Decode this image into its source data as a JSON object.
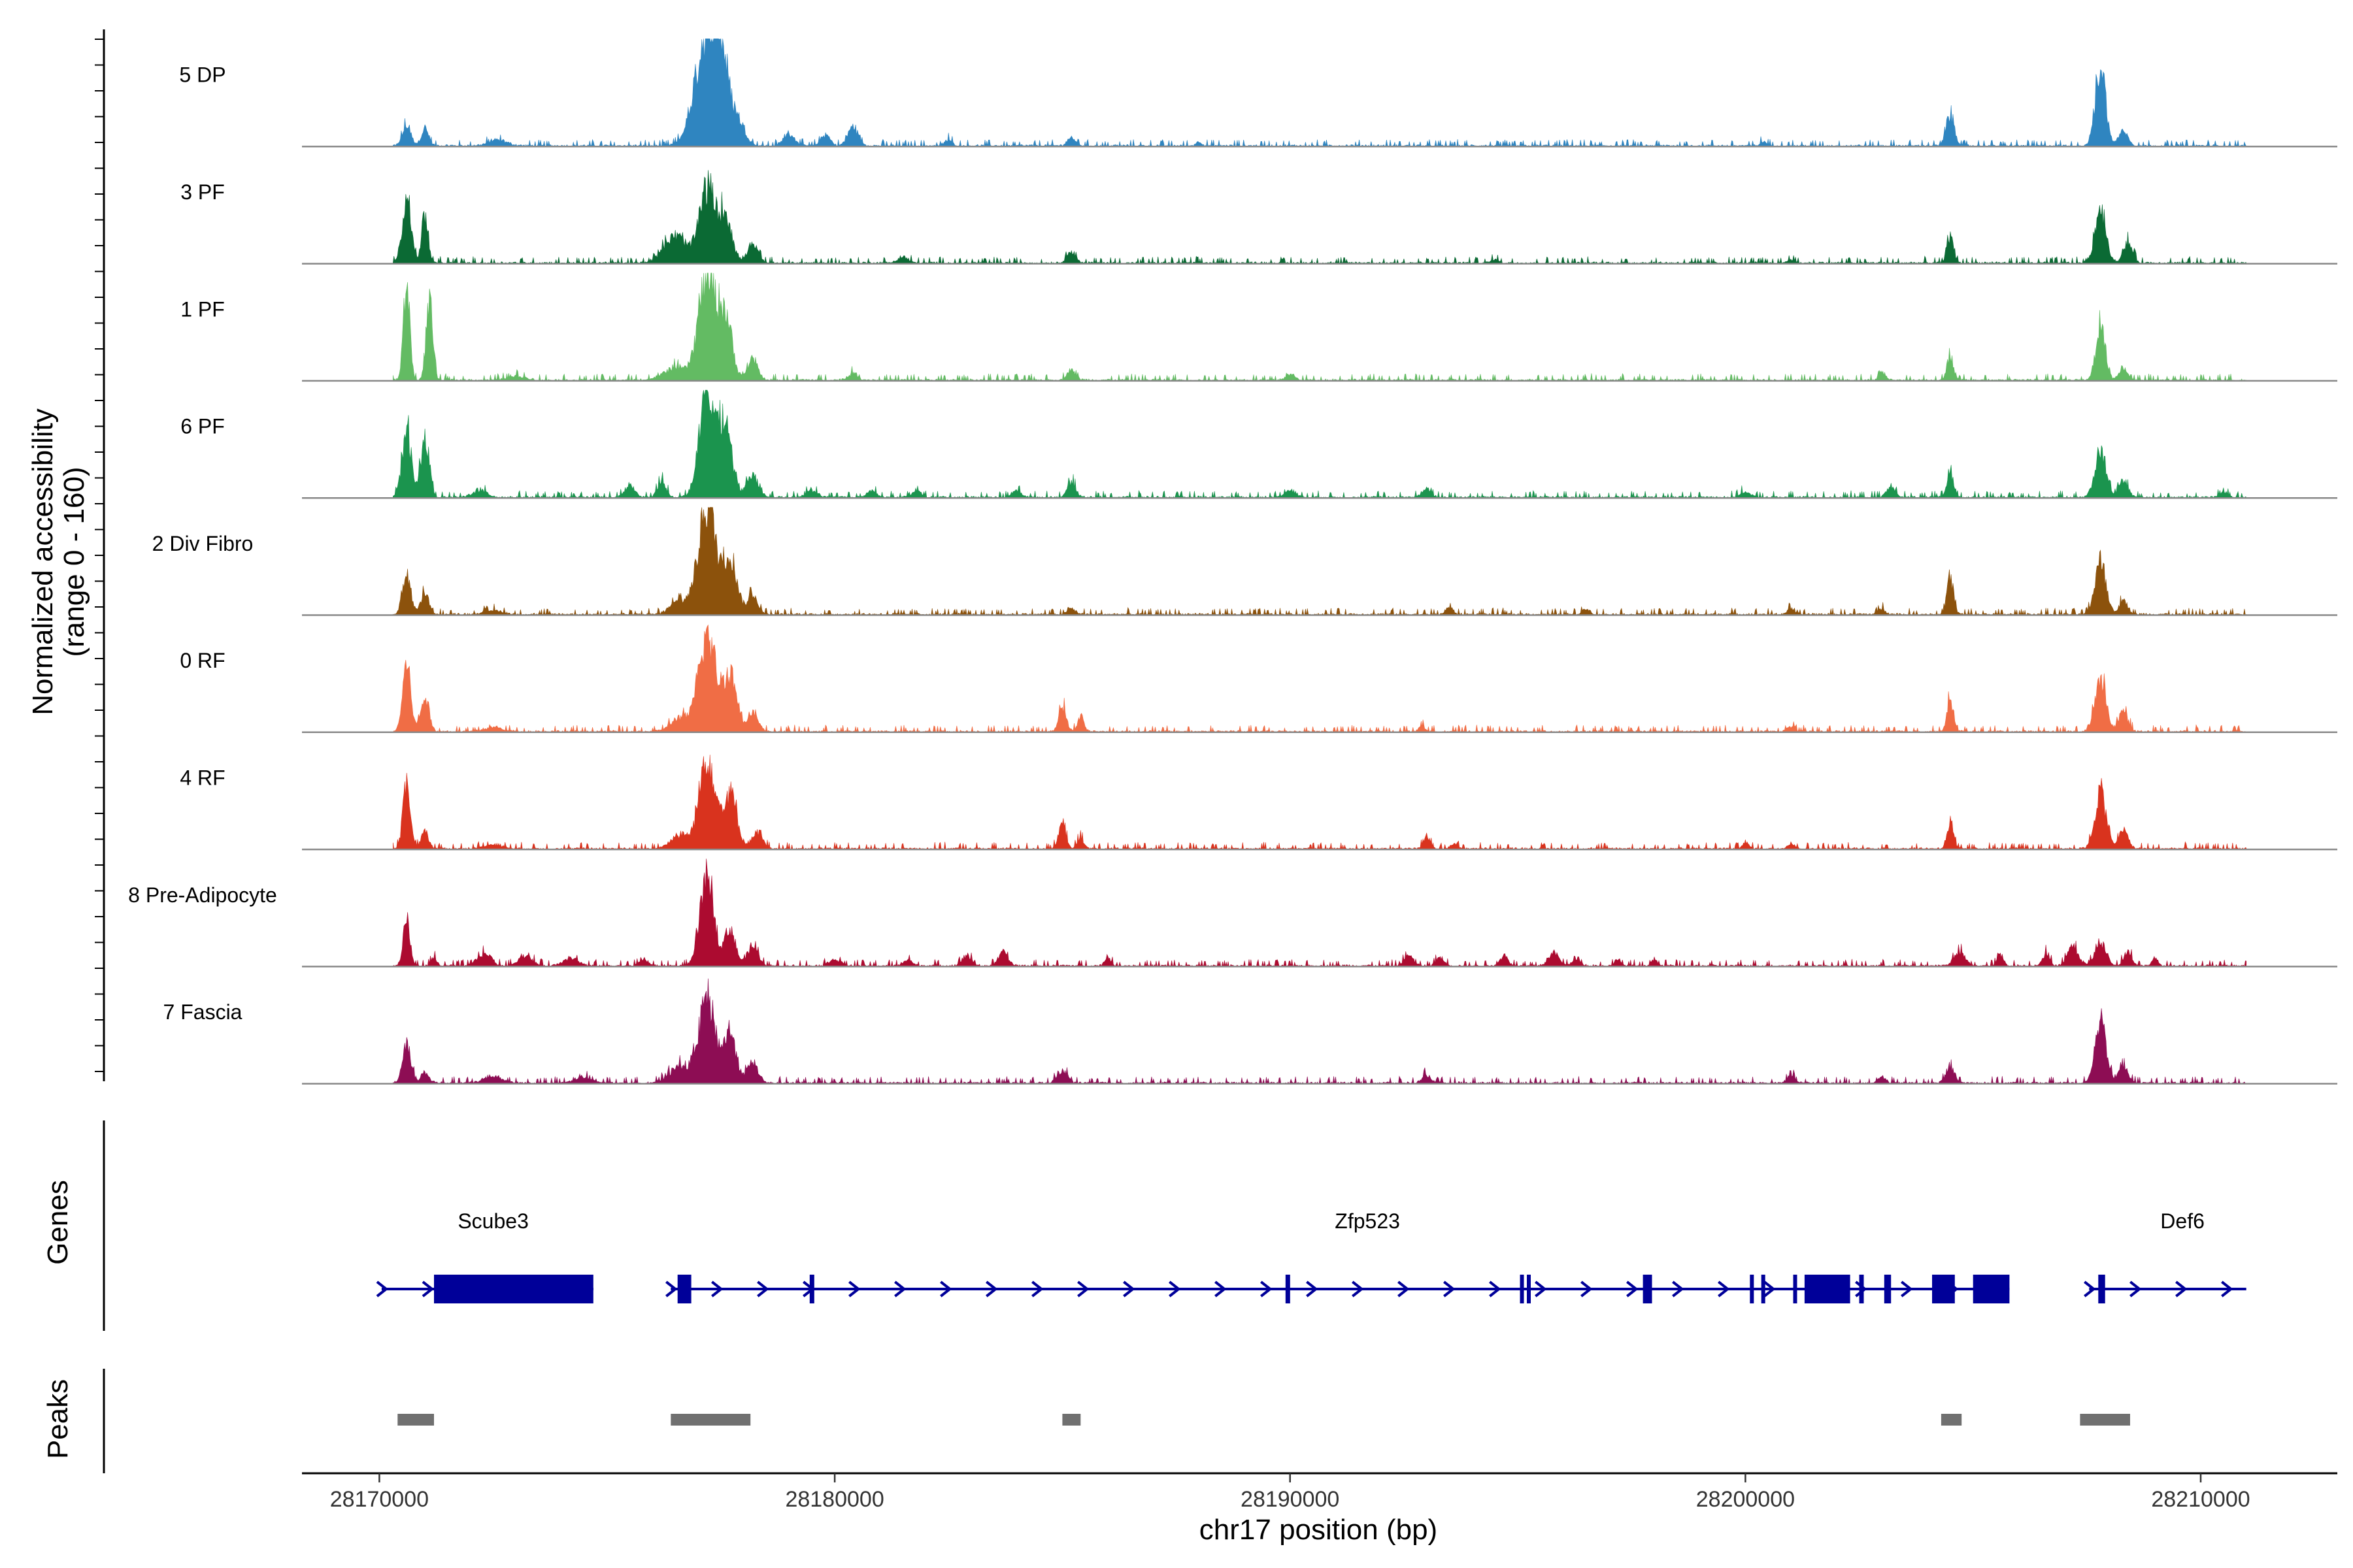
{
  "chart_data": {
    "type": "area",
    "title": "",
    "xlabel": "chr17 position (bp)",
    "ylabel": [
      "Normalized accessibility",
      "(range 0 - 160)"
    ],
    "ylim": [
      0,
      160
    ],
    "xlim": [
      28168300,
      28213000
    ],
    "x_ticks": [
      {
        "value": 28170000,
        "label": "28170000"
      },
      {
        "value": 28180000,
        "label": "28180000"
      },
      {
        "value": 28190000,
        "label": "28190000"
      },
      {
        "value": 28200000,
        "label": "28200000"
      },
      {
        "value": 28210000,
        "label": "28210000"
      }
    ],
    "data_range": [
      28170300,
      28211000
    ],
    "series": [
      {
        "name": "5 DP",
        "color": "#2f85c0",
        "peaks": [
          [
            28170600,
            30,
            90
          ],
          [
            28171000,
            26,
            80
          ],
          [
            28172600,
            8,
            200
          ],
          [
            28177200,
            160,
            260
          ],
          [
            28177500,
            90,
            180
          ],
          [
            28177900,
            30,
            150
          ],
          [
            28179000,
            18,
            120
          ],
          [
            28179800,
            16,
            100
          ],
          [
            28180400,
            28,
            110
          ],
          [
            28182500,
            9,
            80
          ],
          [
            28185200,
            12,
            90
          ],
          [
            28188000,
            6,
            60
          ],
          [
            28200400,
            6,
            70
          ],
          [
            28204500,
            45,
            90
          ],
          [
            28207800,
            120,
            110
          ],
          [
            28208300,
            22,
            100
          ]
        ]
      },
      {
        "name": "3 PF",
        "color": "#0b6a34",
        "peaks": [
          [
            28170600,
            95,
            100
          ],
          [
            28171000,
            70,
            70
          ],
          [
            28176500,
            40,
            250
          ],
          [
            28177200,
            110,
            170
          ],
          [
            28177600,
            70,
            140
          ],
          [
            28178200,
            25,
            120
          ],
          [
            28181500,
            8,
            120
          ],
          [
            28185200,
            18,
            90
          ],
          [
            28194500,
            6,
            70
          ],
          [
            28201000,
            6,
            70
          ],
          [
            28204500,
            40,
            70
          ],
          [
            28207800,
            80,
            120
          ],
          [
            28208400,
            30,
            100
          ]
        ]
      },
      {
        "name": "1 PF",
        "color": "#63bb63",
        "peaks": [
          [
            28170600,
            140,
            70
          ],
          [
            28171100,
            115,
            70
          ],
          [
            28173000,
            6,
            200
          ],
          [
            28176500,
            18,
            250
          ],
          [
            28177200,
            155,
            190
          ],
          [
            28177600,
            90,
            140
          ],
          [
            28178200,
            30,
            110
          ],
          [
            28180400,
            10,
            100
          ],
          [
            28185200,
            15,
            90
          ],
          [
            28190000,
            8,
            100
          ],
          [
            28203000,
            12,
            70
          ],
          [
            28204500,
            35,
            70
          ],
          [
            28207800,
            85,
            100
          ],
          [
            28208300,
            18,
            90
          ]
        ]
      },
      {
        "name": "6 PF",
        "color": "#1b944e",
        "peaks": [
          [
            28170600,
            100,
            100
          ],
          [
            28171000,
            90,
            90
          ],
          [
            28172200,
            10,
            150
          ],
          [
            28175500,
            18,
            100
          ],
          [
            28176200,
            25,
            90
          ],
          [
            28177200,
            155,
            170
          ],
          [
            28177600,
            110,
            140
          ],
          [
            28178200,
            30,
            130
          ],
          [
            28179500,
            10,
            120
          ],
          [
            28180800,
            10,
            100
          ],
          [
            28181800,
            10,
            100
          ],
          [
            28184000,
            10,
            100
          ],
          [
            28185200,
            22,
            90
          ],
          [
            28190000,
            10,
            120
          ],
          [
            28193000,
            12,
            100
          ],
          [
            28200000,
            8,
            100
          ],
          [
            28203200,
            14,
            100
          ],
          [
            28204500,
            40,
            70
          ],
          [
            28207800,
            70,
            120
          ],
          [
            28208300,
            25,
            100
          ],
          [
            28210500,
            8,
            80
          ]
        ]
      },
      {
        "name": "2 Div Fibro",
        "color": "#8c520c",
        "peaks": [
          [
            28170600,
            60,
            90
          ],
          [
            28171000,
            30,
            90
          ],
          [
            28172500,
            6,
            200
          ],
          [
            28176600,
            20,
            200
          ],
          [
            28177200,
            165,
            190
          ],
          [
            28177700,
            85,
            150
          ],
          [
            28178200,
            30,
            110
          ],
          [
            28185200,
            8,
            90
          ],
          [
            28193500,
            10,
            80
          ],
          [
            28196500,
            8,
            80
          ],
          [
            28201000,
            8,
            80
          ],
          [
            28203000,
            8,
            80
          ],
          [
            28204500,
            55,
            70
          ],
          [
            28207800,
            80,
            120
          ],
          [
            28208300,
            20,
            90
          ]
        ]
      },
      {
        "name": "0 RF",
        "color": "#f06d45",
        "peaks": [
          [
            28170600,
            98,
            90
          ],
          [
            28171000,
            50,
            90
          ],
          [
            28172500,
            6,
            200
          ],
          [
            28176600,
            20,
            200
          ],
          [
            28177200,
            140,
            190
          ],
          [
            28177700,
            85,
            150
          ],
          [
            28178200,
            28,
            110
          ],
          [
            28185000,
            38,
            80
          ],
          [
            28185400,
            22,
            70
          ],
          [
            28192900,
            8,
            70
          ],
          [
            28201000,
            8,
            80
          ],
          [
            28204500,
            48,
            70
          ],
          [
            28207800,
            80,
            120
          ],
          [
            28208300,
            30,
            100
          ]
        ]
      },
      {
        "name": "4 RF",
        "color": "#d9331e",
        "peaks": [
          [
            28170600,
            95,
            80
          ],
          [
            28171000,
            25,
            80
          ],
          [
            28172500,
            6,
            200
          ],
          [
            28176600,
            20,
            200
          ],
          [
            28177200,
            140,
            170
          ],
          [
            28177700,
            80,
            150
          ],
          [
            28178300,
            25,
            110
          ],
          [
            28185000,
            35,
            80
          ],
          [
            28185400,
            15,
            70
          ],
          [
            28193000,
            18,
            70
          ],
          [
            28193600,
            8,
            70
          ],
          [
            28200000,
            8,
            80
          ],
          [
            28201000,
            8,
            80
          ],
          [
            28204500,
            38,
            70
          ],
          [
            28207800,
            85,
            120
          ],
          [
            28208300,
            28,
            100
          ]
        ]
      },
      {
        "name": "8 Pre-Adipocyte",
        "color": "#ac0b30",
        "peaks": [
          [
            28170600,
            70,
            70
          ],
          [
            28171200,
            12,
            60
          ],
          [
            28172300,
            18,
            150
          ],
          [
            28173200,
            15,
            150
          ],
          [
            28174200,
            12,
            150
          ],
          [
            28175800,
            10,
            90
          ],
          [
            28177200,
            135,
            150
          ],
          [
            28177700,
            55,
            120
          ],
          [
            28178200,
            28,
            120
          ],
          [
            28180000,
            10,
            120
          ],
          [
            28181600,
            10,
            90
          ],
          [
            28182900,
            15,
            100
          ],
          [
            28183700,
            20,
            100
          ],
          [
            28186000,
            14,
            60
          ],
          [
            28192600,
            15,
            100
          ],
          [
            28193300,
            12,
            90
          ],
          [
            28194700,
            15,
            90
          ],
          [
            28195800,
            18,
            120
          ],
          [
            28196300,
            12,
            80
          ],
          [
            28197200,
            10,
            60
          ],
          [
            28198000,
            10,
            60
          ],
          [
            28204700,
            20,
            120
          ],
          [
            28205600,
            16,
            70
          ],
          [
            28206600,
            18,
            80
          ],
          [
            28207200,
            28,
            120
          ],
          [
            28207800,
            35,
            120
          ],
          [
            28208400,
            20,
            90
          ],
          [
            28209000,
            12,
            60
          ]
        ]
      },
      {
        "name": "7 Fascia",
        "color": "#8d0d54",
        "peaks": [
          [
            28170600,
            60,
            90
          ],
          [
            28171000,
            15,
            90
          ],
          [
            28172500,
            10,
            200
          ],
          [
            28174500,
            8,
            200
          ],
          [
            28176600,
            25,
            220
          ],
          [
            28177200,
            125,
            180
          ],
          [
            28177700,
            75,
            130
          ],
          [
            28178200,
            30,
            120
          ],
          [
            28185000,
            18,
            110
          ],
          [
            28193000,
            12,
            90
          ],
          [
            28201000,
            10,
            90
          ],
          [
            28203000,
            8,
            80
          ],
          [
            28204500,
            25,
            90
          ],
          [
            28207800,
            95,
            120
          ],
          [
            28208300,
            25,
            100
          ]
        ]
      }
    ],
    "genes": [
      {
        "name": "Scube3",
        "start": 28170050,
        "end": 28174700,
        "exons": [
          [
            28171200,
            28174700
          ]
        ],
        "label_position": 28172500
      },
      {
        "name": "Zfp523",
        "start": 28176400,
        "end": 28205800,
        "exons": [
          [
            28176550,
            28176850
          ],
          [
            28179450,
            28179550
          ],
          [
            28189900,
            28190000
          ],
          [
            28195050,
            28195120
          ],
          [
            28195200,
            28195280
          ],
          [
            28197750,
            28197950
          ],
          [
            28200100,
            28200170
          ],
          [
            28200350,
            28200420
          ],
          [
            28201050,
            28201130
          ],
          [
            28201300,
            28202300
          ],
          [
            28202500,
            28202600
          ],
          [
            28203050,
            28203200
          ],
          [
            28204100,
            28204600
          ],
          [
            28205000,
            28205800
          ]
        ],
        "label_position": 28191700
      },
      {
        "name": "Def6",
        "start": 28207550,
        "end": 28211000,
        "exons": [
          [
            28207750,
            28207900
          ]
        ],
        "label_position": 28209600
      }
    ],
    "peak_regions": [
      [
        28170400,
        28171200
      ],
      [
        28176400,
        28178150
      ],
      [
        28185000,
        28185400
      ],
      [
        28204300,
        28204750
      ],
      [
        28207350,
        28208450
      ]
    ],
    "panel_titles": {
      "genes": "Genes",
      "peaks": "Peaks"
    }
  }
}
